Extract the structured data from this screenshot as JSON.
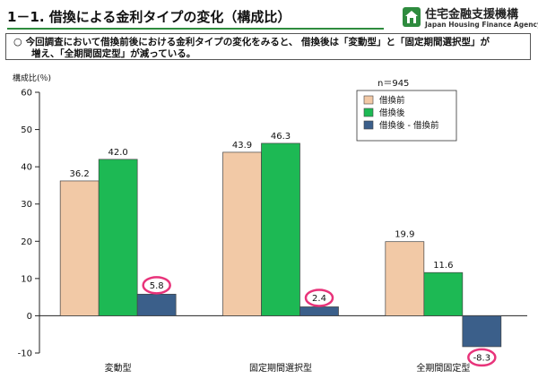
{
  "header": {
    "title": "1－1. 借換による金利タイプの変化（構成比）",
    "logo_jp": "住宅金融支援機構",
    "logo_en": "Japan Housing Finance Agency"
  },
  "summary": {
    "bullet": "○",
    "line1": "今回調査において借換前後における金利タイプの変化をみると、 借換後は「変動型」と「固定期間選択型」が",
    "line2": "増え、「全期間固定型」が減っている。"
  },
  "chart_data": {
    "type": "bar",
    "ylabel": "構成比(％)",
    "ylim": [
      -10,
      60
    ],
    "yticks": [
      -10,
      0,
      10,
      20,
      30,
      40,
      50,
      60
    ],
    "note": "n＝945",
    "legend_position": "top-right",
    "categories": [
      "変動型",
      "固定期間選択型",
      "全期間固定型"
    ],
    "series": [
      {
        "name": "借換前",
        "values": [
          36.2,
          43.9,
          19.9
        ],
        "color": "#f2c9a6"
      },
      {
        "name": "借換後",
        "values": [
          42.0,
          46.3,
          11.6
        ],
        "color": "#1db954"
      },
      {
        "name": "借換後 - 借換前",
        "values": [
          5.8,
          2.4,
          -8.3
        ],
        "color": "#3b5f8a"
      }
    ],
    "highlight_color": "#e8337a"
  }
}
